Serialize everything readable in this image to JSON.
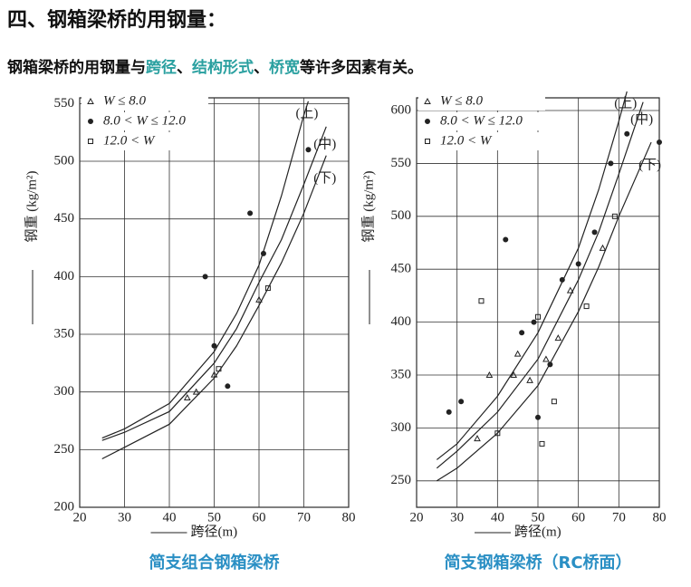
{
  "header": {
    "title": "四、钢箱梁桥的用钢量：",
    "intro": [
      {
        "text": "钢箱梁桥的用钢量与",
        "highlight": false
      },
      {
        "text": "跨径",
        "highlight": true
      },
      {
        "text": "、",
        "highlight": false
      },
      {
        "text": "结构形式",
        "highlight": true
      },
      {
        "text": "、",
        "highlight": false
      },
      {
        "text": "桥宽",
        "highlight": true
      },
      {
        "text": "等许多因素有关。",
        "highlight": false
      }
    ]
  },
  "chart_data": [
    {
      "type": "line",
      "title": "简支组合钢箱梁桥",
      "xlabel": "跨径(m)",
      "ylabel": "钢重 (kg/m²)",
      "xlim": [
        20,
        80
      ],
      "xticks": [
        20,
        30,
        40,
        50,
        60,
        70,
        80
      ],
      "ylim": [
        200,
        555
      ],
      "yticks": [
        200,
        250,
        300,
        350,
        400,
        450,
        500,
        550
      ],
      "grid": true,
      "legend": "upper left",
      "series": [
        {
          "name": "(上)",
          "kind": "curve",
          "color": "#222",
          "x": [
            25,
            30,
            40,
            50,
            55,
            60,
            65,
            70,
            71
          ],
          "values": [
            260,
            268,
            290,
            335,
            368,
            410,
            470,
            540,
            552
          ]
        },
        {
          "name": "(中)",
          "kind": "curve",
          "color": "#222",
          "x": [
            25,
            30,
            40,
            50,
            55,
            60,
            65,
            70,
            75
          ],
          "values": [
            258,
            265,
            283,
            325,
            355,
            395,
            432,
            480,
            530
          ]
        },
        {
          "name": "(下)",
          "kind": "curve",
          "color": "#222",
          "x": [
            25,
            30,
            40,
            50,
            55,
            60,
            65,
            70,
            75
          ],
          "values": [
            242,
            252,
            272,
            312,
            340,
            375,
            412,
            455,
            505
          ]
        },
        {
          "name": "W ≤ 8.0",
          "kind": "points",
          "marker": "triangle",
          "color": "#222",
          "x": [
            44,
            46,
            50,
            60
          ],
          "values": [
            295,
            300,
            315,
            380
          ]
        },
        {
          "name": "8.0 < W ≤ 12.0",
          "kind": "points",
          "marker": "dot",
          "color": "#222",
          "x": [
            50,
            53,
            58,
            61,
            71,
            48
          ],
          "values": [
            340,
            305,
            455,
            420,
            510,
            400
          ]
        },
        {
          "name": "12.0 < W",
          "kind": "points",
          "marker": "square",
          "color": "#222",
          "x": [
            51,
            62
          ],
          "values": [
            320,
            390
          ]
        }
      ]
    },
    {
      "type": "line",
      "title": "简支钢箱梁桥（RC桥面）",
      "xlabel": "跨径(m)",
      "ylabel": "钢重 (kg/m²)",
      "xlim": [
        20,
        80
      ],
      "xticks": [
        20,
        30,
        40,
        50,
        60,
        70,
        80
      ],
      "ylim": [
        225,
        612
      ],
      "yticks": [
        250,
        300,
        350,
        400,
        450,
        500,
        550,
        600
      ],
      "grid": true,
      "legend": "upper left",
      "series": [
        {
          "name": "(上)",
          "kind": "curve",
          "color": "#222",
          "x": [
            25,
            30,
            40,
            50,
            60,
            65,
            70,
            72
          ],
          "values": [
            270,
            285,
            330,
            390,
            470,
            525,
            590,
            618
          ]
        },
        {
          "name": "(中)",
          "kind": "curve",
          "color": "#222",
          "x": [
            25,
            30,
            40,
            50,
            60,
            65,
            70,
            76
          ],
          "values": [
            262,
            278,
            315,
            365,
            440,
            485,
            540,
            608
          ]
        },
        {
          "name": "(下)",
          "kind": "curve",
          "color": "#222",
          "x": [
            25,
            30,
            40,
            50,
            60,
            65,
            70,
            78
          ],
          "values": [
            250,
            262,
            295,
            340,
            410,
            452,
            500,
            570
          ]
        },
        {
          "name": "W ≤ 8.0",
          "kind": "points",
          "marker": "triangle",
          "color": "#222",
          "x": [
            35,
            38,
            44,
            45,
            48,
            52,
            55,
            58,
            66
          ],
          "values": [
            290,
            350,
            350,
            370,
            345,
            365,
            385,
            430,
            470
          ]
        },
        {
          "name": "8.0 < W ≤ 12.0",
          "kind": "points",
          "marker": "dot",
          "color": "#222",
          "x": [
            28,
            31,
            42,
            46,
            49,
            50,
            53,
            56,
            60,
            64,
            68,
            72,
            80
          ],
          "values": [
            315,
            325,
            478,
            390,
            400,
            310,
            360,
            440,
            455,
            485,
            550,
            578,
            570
          ]
        },
        {
          "name": "12.0 < W",
          "kind": "points",
          "marker": "square",
          "color": "#222",
          "x": [
            36,
            40,
            50,
            51,
            54,
            62,
            69
          ],
          "values": [
            420,
            295,
            405,
            285,
            325,
            415,
            500
          ]
        }
      ]
    }
  ]
}
